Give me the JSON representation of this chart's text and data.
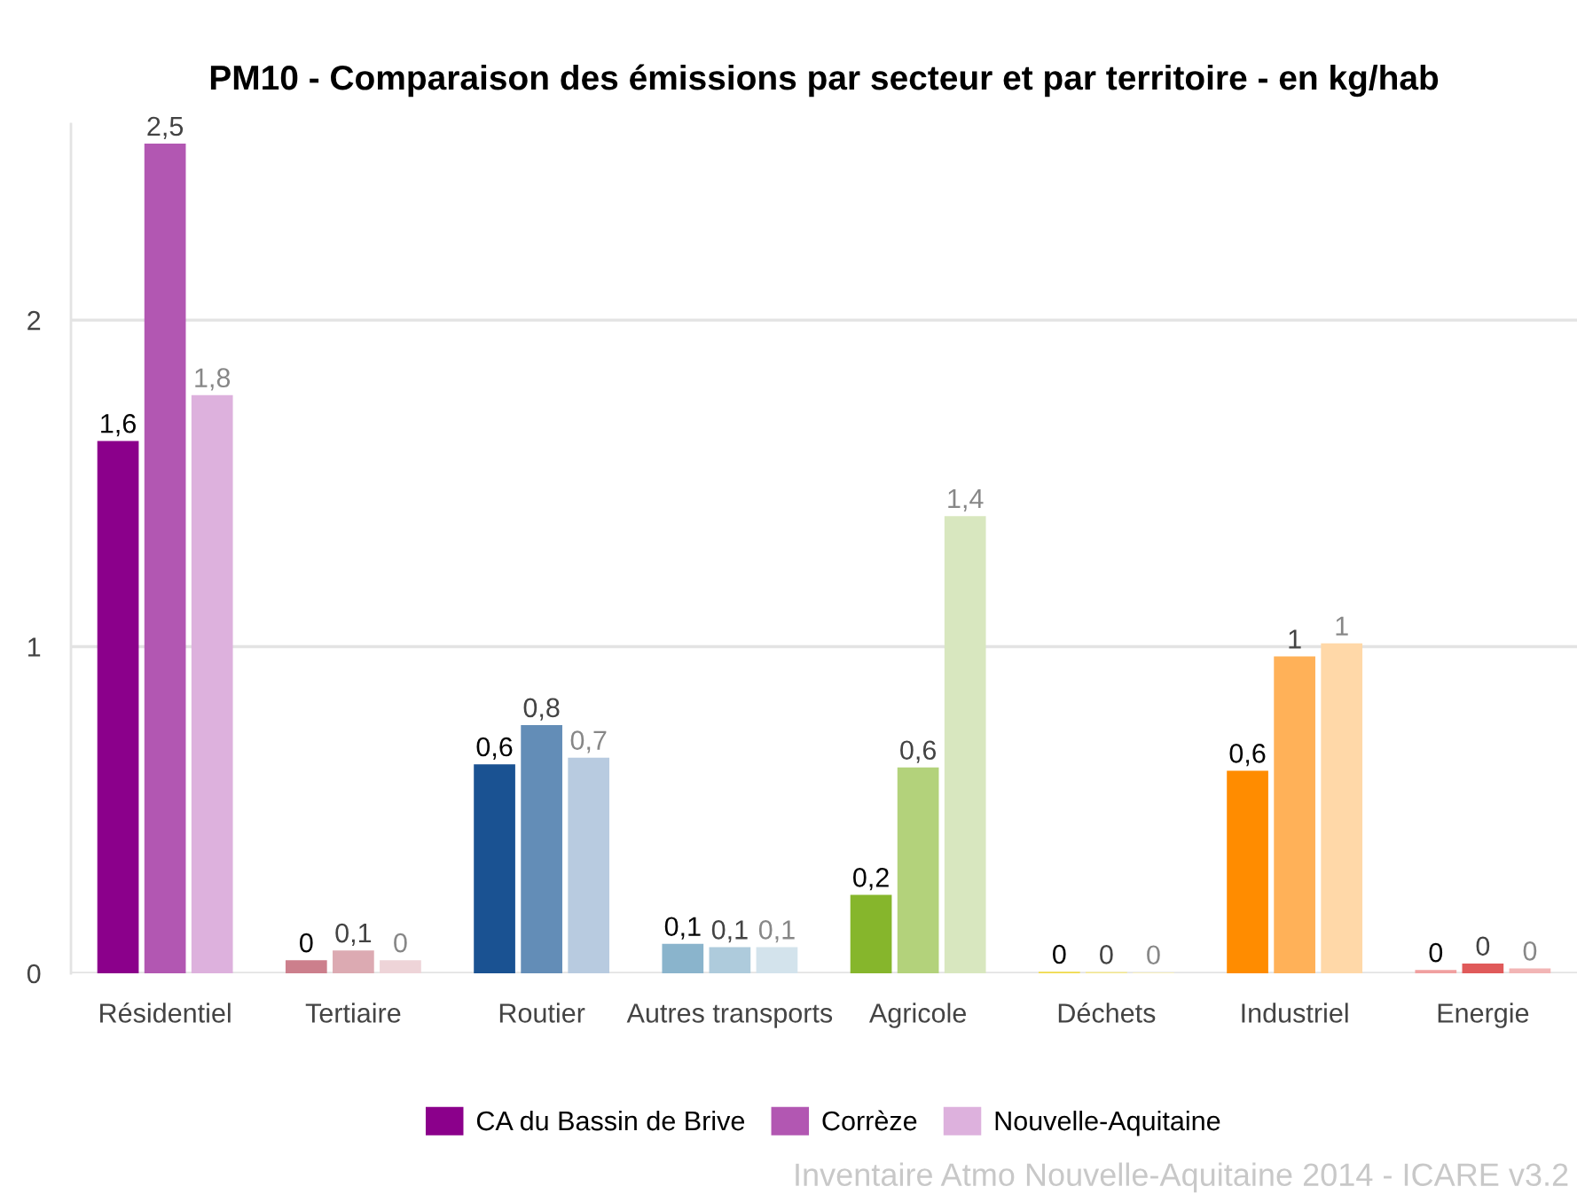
{
  "chart_data": {
    "type": "bar",
    "title": "PM10 - Comparaison des émissions par secteur et par territoire - en kg/hab",
    "categories": [
      "Résidentiel",
      "Tertiaire",
      "Routier",
      "Autres transports",
      "Agricole",
      "Déchets",
      "Industriel",
      "Energie"
    ],
    "series": [
      {
        "name": "CA du Bassin de Brive",
        "color": "#8b008b",
        "values": [
          1.63,
          0.04,
          0.64,
          0.09,
          0.24,
          0.005,
          0.62,
          0.01
        ],
        "value_labels": [
          "1,6",
          "0",
          "0,6",
          "0,1",
          "0,2",
          "0",
          "0,6",
          "0"
        ],
        "colors": [
          "#8b008b",
          "#cc7f8c",
          "#1a5292",
          "#8ab4cc",
          "#86b62c",
          "#f2dc4a",
          "#ff8c00",
          "#f0a0a0"
        ]
      },
      {
        "name": "Corrèze",
        "color": "#b257b2",
        "values": [
          2.54,
          0.07,
          0.76,
          0.08,
          0.63,
          0.004,
          0.97,
          0.03
        ],
        "value_labels": [
          "2,5",
          "0,1",
          "0,8",
          "0,1",
          "0,6",
          "0",
          "1",
          "0"
        ],
        "colors": [
          "#b257b2",
          "#dcaab2",
          "#638db7",
          "#aecbdc",
          "#b3d27b",
          "#f5e88e",
          "#ffb158",
          "#e05a5a"
        ]
      },
      {
        "name": "Nouvelle-Aquitaine",
        "color": "#ddb1dd",
        "values": [
          1.77,
          0.04,
          0.66,
          0.08,
          1.4,
          0.003,
          1.01,
          0.015
        ],
        "value_labels": [
          "1,8",
          "0",
          "0,7",
          "0,1",
          "1,4",
          "0",
          "1",
          "0"
        ],
        "colors": [
          "#ddb1dd",
          "#eed4d8",
          "#b8cbe0",
          "#d3e3ec",
          "#d8e7bf",
          "#f7efbf",
          "#ffd8a8",
          "#f2b5b5"
        ]
      }
    ],
    "ylim": [
      0,
      2.6
    ],
    "yticks": [
      0,
      1,
      2
    ],
    "grid": "y",
    "legend": "bottom",
    "annotations": [
      "Inventaire Atmo Nouvelle-Aquitaine 2014 - ICARE v3.2"
    ]
  }
}
